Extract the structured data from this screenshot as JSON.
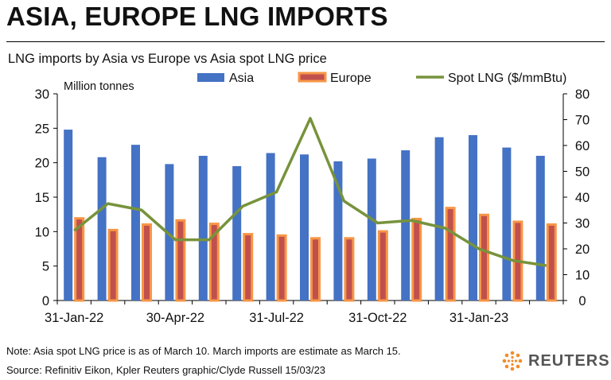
{
  "header": {
    "title": "ASIA, EUROPE LNG IMPORTS",
    "subtitle": "LNG imports by Asia vs Europe vs Asia spot LNG price"
  },
  "footer": {
    "note": "Note: Asia spot LNG price is as of March 10. March imports are estimate as March 15.",
    "source": "Source: Refinitiv Eikon, Kpler    Reuters graphic/Clyde Russell 15/03/23",
    "logo_text": "REUTERS"
  },
  "colors": {
    "asia": "#4472c4",
    "europe_fill": "#c0504d",
    "europe_border": "#f79646",
    "spot": "#77933c"
  },
  "chart_data": {
    "type": "bar",
    "ylabel": "Million tonnes",
    "ylim": [
      0,
      30
    ],
    "y_ticks": [
      "0",
      "5",
      "10",
      "15",
      "20",
      "25",
      "30"
    ],
    "y2lim": [
      0,
      80
    ],
    "y2_ticks": [
      "0",
      "10",
      "20",
      "30",
      "40",
      "50",
      "60",
      "70",
      "80"
    ],
    "x_tick_labels": [
      {
        "index": 0,
        "label": "31-Jan-22"
      },
      {
        "index": 3,
        "label": "30-Apr-22"
      },
      {
        "index": 6,
        "label": "31-Jul-22"
      },
      {
        "index": 9,
        "label": "31-Oct-22"
      },
      {
        "index": 12,
        "label": "31-Jan-23"
      }
    ],
    "categories": [
      "Jan-22",
      "Feb-22",
      "Mar-22",
      "Apr-22",
      "May-22",
      "Jun-22",
      "Jul-22",
      "Aug-22",
      "Sep-22",
      "Oct-22",
      "Nov-22",
      "Dec-22",
      "Jan-23",
      "Feb-23",
      "Mar-23"
    ],
    "legend": [
      "Asia",
      "Europe",
      "Spot LNG ($/mmBtu)"
    ],
    "legend_position": "top",
    "series": [
      {
        "name": "Asia",
        "type": "bar",
        "axis": "left",
        "values": [
          24.8,
          20.8,
          22.6,
          19.8,
          21.0,
          19.5,
          21.4,
          21.2,
          20.2,
          20.6,
          21.8,
          23.7,
          24.0,
          22.2,
          21.0
        ]
      },
      {
        "name": "Europe",
        "type": "bar",
        "axis": "left",
        "values": [
          12.1,
          10.4,
          11.2,
          11.8,
          11.3,
          9.8,
          9.6,
          9.2,
          9.2,
          10.2,
          12.0,
          13.6,
          12.6,
          11.6,
          11.2
        ]
      },
      {
        "name": "Spot LNG ($/mmBtu)",
        "type": "line",
        "axis": "right",
        "values": [
          27,
          37.5,
          35,
          23.5,
          23.5,
          36.5,
          42,
          70.5,
          38.5,
          30,
          31,
          28,
          20,
          15.5,
          13.5
        ]
      }
    ]
  }
}
